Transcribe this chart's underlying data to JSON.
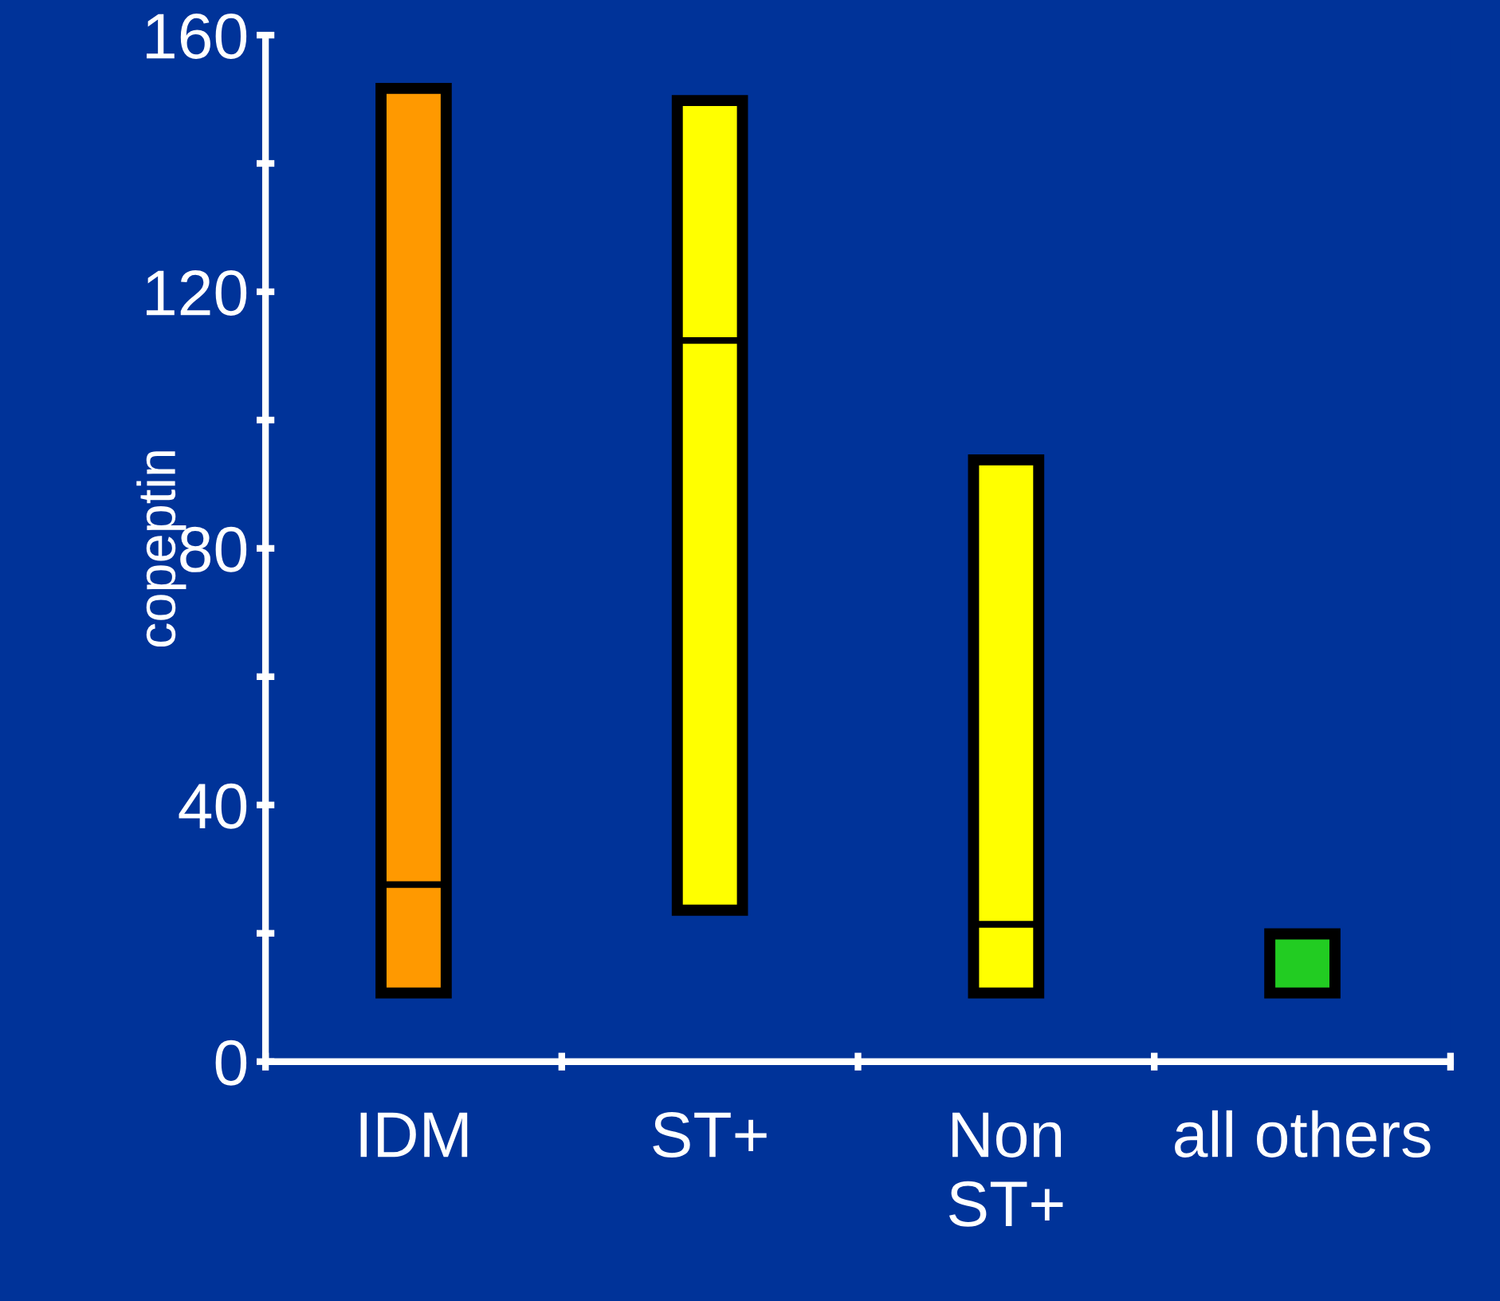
{
  "chart_data": {
    "type": "box",
    "ylabel": "copeptin",
    "categories": [
      "IDM",
      "ST+",
      "Non\nST+",
      "all others"
    ],
    "colors": [
      "#ff9900",
      "#ffff00",
      "#ffff00",
      "#22cc22"
    ],
    "boxes": [
      {
        "low": 10.7,
        "q1": 10.7,
        "median": 27.6,
        "q3": 151.7,
        "high": 151.7
      },
      {
        "low": 23.6,
        "q1": 23.6,
        "median": 112.4,
        "q3": 149.8,
        "high": 149.8
      },
      {
        "low": 10.7,
        "q1": 10.7,
        "median": 21.4,
        "q3": 93.8,
        "high": 93.8
      },
      {
        "low": 10.7,
        "q1": 10.7,
        "median": null,
        "q3": 19.9,
        "high": 19.9
      }
    ],
    "ylim": [
      0,
      160
    ],
    "yticks": [
      0,
      {
        "value": 20,
        "label": null
      },
      40,
      {
        "value": 60,
        "label": null
      },
      80,
      {
        "value": 100,
        "label": null
      },
      120,
      {
        "value": 140,
        "label": null
      },
      160
    ],
    "grid": false
  }
}
